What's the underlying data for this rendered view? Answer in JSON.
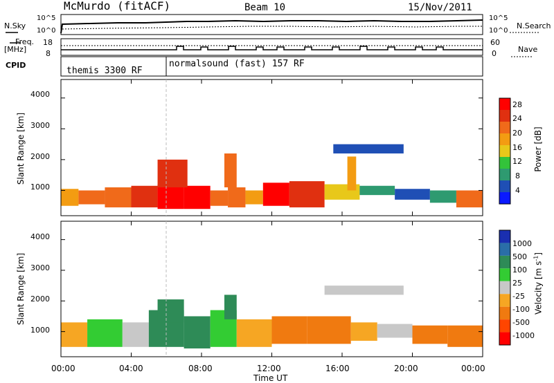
{
  "header": {
    "station": "McMurdo (fitACF)",
    "beam": "Beam 10",
    "date": "15/Nov/2011"
  },
  "strip": {
    "nsky_label": "N.Sky",
    "nsearch_label": "N.Search",
    "left_ticks": [
      "10^5",
      "10^0"
    ],
    "right_ticks": [
      "10^5",
      "10^0"
    ],
    "freq_label": "Freq.",
    "freq_unit": "[MHz]",
    "freq_ticks": [
      "18",
      "8"
    ],
    "nave_label": "Nave",
    "nave_ticks": [
      "60",
      "0"
    ],
    "cpid_label": "CPID",
    "cpid_mode_1": "themis 3300 RF",
    "cpid_mode_2": "normalsound (fast) 157 RF"
  },
  "chart_data": [
    {
      "type": "heatmap",
      "panel": "power",
      "ylabel": "Slant Range [km]",
      "xlabel": "",
      "yticks": [
        "1000",
        "2000",
        "3000",
        "4000"
      ],
      "ylim": [
        180,
        4600
      ],
      "xlim": [
        0,
        24
      ],
      "colorbar_label": "Power [dB]",
      "colorbar_ticks": [
        "4",
        "8",
        "12",
        "16",
        "20",
        "24",
        "28"
      ],
      "colors": [
        "#0a19ff",
        "#1f4fb5",
        "#2e9a70",
        "#33c33a",
        "#e8c81a",
        "#f39c12",
        "#f06a1a",
        "#e03010",
        "#ff0000"
      ],
      "bands": [
        {
          "t0": 0.0,
          "t1": 1.0,
          "r0": 500,
          "r1": 1050,
          "level": 5
        },
        {
          "t0": 1.0,
          "t1": 2.5,
          "r0": 550,
          "r1": 1000,
          "level": 6
        },
        {
          "t0": 2.5,
          "t1": 4.0,
          "r0": 450,
          "r1": 1100,
          "level": 6
        },
        {
          "t0": 4.0,
          "t1": 5.5,
          "r0": 450,
          "r1": 1150,
          "level": 7
        },
        {
          "t0": 5.5,
          "t1": 7.0,
          "r0": 400,
          "r1": 1200,
          "level": 8
        },
        {
          "t0": 7.0,
          "t1": 8.5,
          "r0": 400,
          "r1": 1150,
          "level": 8
        },
        {
          "t0": 8.5,
          "t1": 9.5,
          "r0": 500,
          "r1": 1000,
          "level": 6
        },
        {
          "t0": 9.5,
          "t1": 10.5,
          "r0": 450,
          "r1": 1100,
          "level": 6
        },
        {
          "t0": 10.5,
          "t1": 11.5,
          "r0": 550,
          "r1": 1000,
          "level": 5
        },
        {
          "t0": 11.5,
          "t1": 13.0,
          "r0": 500,
          "r1": 1250,
          "level": 8
        },
        {
          "t0": 13.0,
          "t1": 15.0,
          "r0": 450,
          "r1": 1300,
          "level": 7
        },
        {
          "t0": 15.0,
          "t1": 17.0,
          "r0": 700,
          "r1": 1200,
          "level": 4
        },
        {
          "t0": 17.0,
          "t1": 19.0,
          "r0": 850,
          "r1": 1150,
          "level": 2
        },
        {
          "t0": 19.0,
          "t1": 21.0,
          "r0": 700,
          "r1": 1050,
          "level": 1
        },
        {
          "t0": 21.0,
          "t1": 22.5,
          "r0": 600,
          "r1": 1000,
          "level": 2
        },
        {
          "t0": 22.5,
          "t1": 24.0,
          "r0": 450,
          "r1": 1000,
          "level": 6
        },
        {
          "t0": 15.5,
          "t1": 19.5,
          "r0": 2200,
          "r1": 2500,
          "level": 1
        },
        {
          "t0": 5.5,
          "t1": 7.2,
          "r0": 1100,
          "r1": 2000,
          "level": 7
        },
        {
          "t0": 9.3,
          "t1": 10.0,
          "r0": 1100,
          "r1": 2200,
          "level": 6
        },
        {
          "t0": 16.3,
          "t1": 16.8,
          "r0": 1000,
          "r1": 2100,
          "level": 5
        }
      ]
    },
    {
      "type": "heatmap",
      "panel": "velocity",
      "ylabel": "Slant Range [km]",
      "xlabel": "Time UT",
      "yticks": [
        "1000",
        "2000",
        "3000",
        "4000"
      ],
      "xticks": [
        "00:00",
        "04:00",
        "08:00",
        "12:00",
        "16:00",
        "20:00",
        "00:00"
      ],
      "ylim": [
        180,
        4600
      ],
      "xlim": [
        0,
        24
      ],
      "colorbar_label": "Velocity [m s",
      "colorbar_label_sup": "-1",
      "colorbar_label_end": "]",
      "colorbar_ticks": [
        "1000",
        "500",
        "100",
        "25",
        "-25",
        "-100",
        "-500",
        "-1000"
      ],
      "colors": [
        "#1a2fb0",
        "#2a6ea8",
        "#2e8b57",
        "#33cc33",
        "#c8c8c8",
        "#f6a623",
        "#f07a10",
        "#ff4500",
        "#ff0000"
      ],
      "bands": [
        {
          "t0": 0.0,
          "t1": 1.5,
          "r0": 500,
          "r1": 1300,
          "level": 5
        },
        {
          "t0": 1.5,
          "t1": 3.5,
          "r0": 500,
          "r1": 1400,
          "level": 3
        },
        {
          "t0": 3.5,
          "t1": 5.0,
          "r0": 500,
          "r1": 1300,
          "level": 4
        },
        {
          "t0": 5.0,
          "t1": 7.0,
          "r0": 500,
          "r1": 1700,
          "level": 2
        },
        {
          "t0": 7.0,
          "t1": 8.5,
          "r0": 450,
          "r1": 1500,
          "level": 2
        },
        {
          "t0": 8.5,
          "t1": 10.0,
          "r0": 500,
          "r1": 1700,
          "level": 3
        },
        {
          "t0": 10.0,
          "t1": 12.0,
          "r0": 500,
          "r1": 1400,
          "level": 5
        },
        {
          "t0": 12.0,
          "t1": 14.0,
          "r0": 600,
          "r1": 1500,
          "level": 6
        },
        {
          "t0": 14.0,
          "t1": 16.5,
          "r0": 600,
          "r1": 1500,
          "level": 6
        },
        {
          "t0": 16.5,
          "t1": 18.0,
          "r0": 700,
          "r1": 1300,
          "level": 5
        },
        {
          "t0": 18.0,
          "t1": 20.0,
          "r0": 800,
          "r1": 1250,
          "level": 4
        },
        {
          "t0": 20.0,
          "t1": 22.0,
          "r0": 600,
          "r1": 1200,
          "level": 6
        },
        {
          "t0": 22.0,
          "t1": 24.0,
          "r0": 500,
          "r1": 1200,
          "level": 6
        },
        {
          "t0": 15.0,
          "t1": 19.5,
          "r0": 2200,
          "r1": 2500,
          "level": 4
        },
        {
          "t0": 5.5,
          "t1": 7.0,
          "r0": 1300,
          "r1": 2050,
          "level": 2
        },
        {
          "t0": 9.3,
          "t1": 10.0,
          "r0": 1400,
          "r1": 2200,
          "level": 2
        }
      ]
    }
  ]
}
